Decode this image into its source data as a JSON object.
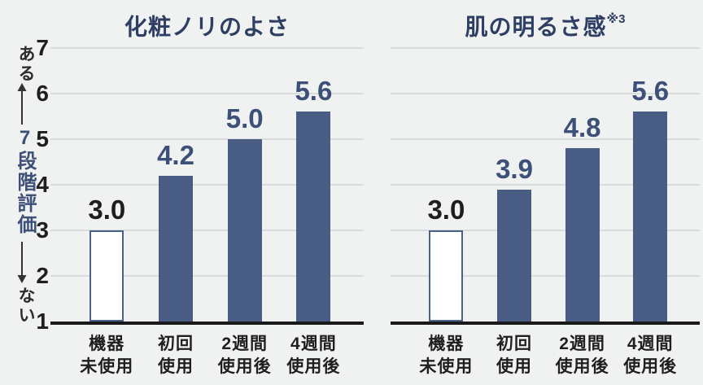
{
  "colors": {
    "background": "#f0f1f1",
    "bar_fill": "#485c84",
    "bar_outline_fill": "#ffffff",
    "bar_outline_border": "#4b6288",
    "value_label": "#3d5078",
    "value_label_baseline_bar": "#1e1e1e",
    "title": "#2e3f63",
    "axis_text": "#1f1f1f",
    "gridline": "#dadbdc",
    "baseline_axis": "#191919"
  },
  "y_axis": {
    "high_label": "ある",
    "low_label": "ない",
    "scale_label": "7段階評価",
    "ticks": [
      "7",
      "6",
      "5",
      "4",
      "3",
      "2",
      "1"
    ],
    "min": 1,
    "max": 7
  },
  "x_categories": [
    {
      "line1": "機器",
      "line2": "未使用"
    },
    {
      "line1": "初回",
      "line2": "使用"
    },
    {
      "line1": "2週間",
      "line2": "使用後"
    },
    {
      "line1": "4週間",
      "line2": "使用後"
    }
  ],
  "chart_data": [
    {
      "type": "bar",
      "title": "化粧ノリのよさ",
      "title_note": "",
      "categories": [
        "機器未使用",
        "初回使用",
        "2週間使用後",
        "4週間使用後"
      ],
      "values": [
        3.0,
        4.2,
        5.0,
        5.6
      ],
      "value_labels": [
        "3.0",
        "4.2",
        "5.0",
        "5.6"
      ],
      "ylim": [
        1,
        7
      ],
      "yticks": [
        1,
        2,
        3,
        4,
        5,
        6,
        7
      ],
      "ylabel": "7段階評価（ない ←→ ある）",
      "grid": true,
      "legend": false,
      "bar_styles": [
        "outline",
        "filled",
        "filled",
        "filled"
      ]
    },
    {
      "type": "bar",
      "title": "肌の明るさ感",
      "title_note": "※3",
      "categories": [
        "機器未使用",
        "初回使用",
        "2週間使用後",
        "4週間使用後"
      ],
      "values": [
        3.0,
        3.9,
        4.8,
        5.6
      ],
      "value_labels": [
        "3.0",
        "3.9",
        "4.8",
        "5.6"
      ],
      "ylim": [
        1,
        7
      ],
      "yticks": [
        1,
        2,
        3,
        4,
        5,
        6,
        7
      ],
      "ylabel": "7段階評価（ない ←→ ある）",
      "grid": true,
      "legend": false,
      "bar_styles": [
        "outline",
        "filled",
        "filled",
        "filled"
      ]
    }
  ]
}
